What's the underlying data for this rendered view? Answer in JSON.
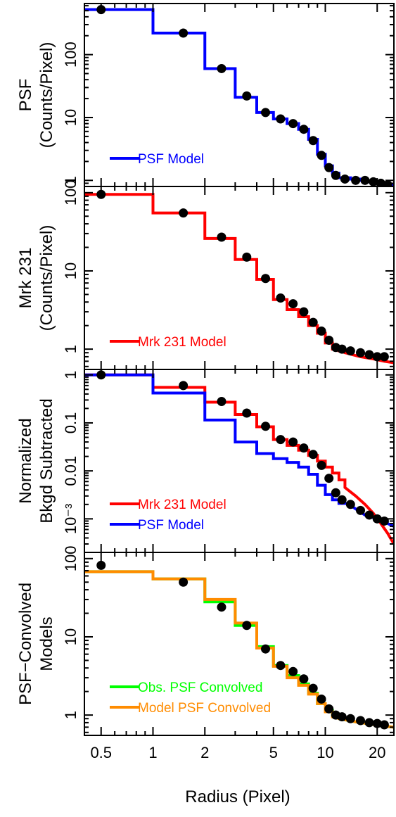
{
  "figure": {
    "xlabel": "Radius (Pixel)",
    "xscale": "log",
    "xlim": [
      0.4,
      25
    ],
    "xticks": [
      0.5,
      1,
      2,
      5,
      10,
      20
    ],
    "xtick_labels": [
      "0.5",
      "1",
      "2",
      "5",
      "10",
      "20"
    ]
  },
  "chart_data": [
    {
      "type": "line",
      "panel": "psf",
      "ylabel_lines": [
        "PSF",
        "(Counts/Pixel)"
      ],
      "yscale": "log",
      "ylim": [
        0.8,
        650
      ],
      "yticks": [
        1,
        10,
        100
      ],
      "ytick_labels": [
        "1",
        "10",
        "100"
      ],
      "legend": "bottom-left",
      "points": {
        "x": [
          0.5,
          1.5,
          2.5,
          3.5,
          4.5,
          5.5,
          6.5,
          7.5,
          8.5,
          9.5,
          10.5,
          11.5,
          13,
          15,
          17,
          19,
          21,
          23
        ],
        "y": [
          520,
          220,
          60,
          22,
          12,
          9.5,
          8,
          6.5,
          4.3,
          2.5,
          1.6,
          1.2,
          1.05,
          1.0,
          1.0,
          0.95,
          0.9,
          0.85
        ]
      },
      "series": [
        {
          "name": "PSF Model",
          "color": "#0000ff",
          "style": "step+curve",
          "steps": [
            [
              0.4,
              520
            ],
            [
              1,
              220
            ],
            [
              2,
              60
            ],
            [
              3,
              21
            ],
            [
              4,
              12
            ],
            [
              5,
              9.5
            ],
            [
              6,
              8
            ],
            [
              7,
              6.5
            ],
            [
              8,
              4.5
            ],
            [
              9,
              2.6
            ],
            [
              10,
              1.7
            ],
            [
              11,
              1.3
            ],
            [
              12,
              1.1
            ],
            [
              14,
              1.05
            ],
            [
              16,
              1.0
            ]
          ],
          "curve": {
            "x": [
              16,
              18,
              20,
              22,
              25
            ],
            "y": [
              1.0,
              0.95,
              0.92,
              0.88,
              0.85
            ]
          }
        }
      ]
    },
    {
      "type": "line",
      "panel": "mrk231",
      "ylabel_lines": [
        "Mrk 231",
        "(Counts/Pixel)"
      ],
      "yscale": "log",
      "ylim": [
        0.55,
        120
      ],
      "yticks": [
        1,
        10,
        100
      ],
      "ytick_labels": [
        "1",
        "10",
        "100"
      ],
      "legend": "bottom-left",
      "points": {
        "x": [
          0.5,
          1.5,
          2.5,
          3.5,
          4.5,
          5.5,
          6.5,
          7.5,
          8.5,
          9.5,
          10.5,
          11.5,
          12.5,
          14,
          16,
          18,
          20,
          22
        ],
        "y": [
          95,
          55,
          27,
          15,
          8,
          4.5,
          3.8,
          3.0,
          2.2,
          1.7,
          1.3,
          1.05,
          1.0,
          0.95,
          0.9,
          0.85,
          0.8,
          0.8
        ]
      },
      "series": [
        {
          "name": "Mrk 231 Model",
          "color": "#ff0000",
          "style": "step+curve",
          "steps": [
            [
              0.4,
              95
            ],
            [
              1,
              55
            ],
            [
              2,
              26
            ],
            [
              3,
              14
            ],
            [
              4,
              7.8
            ],
            [
              5,
              4.3
            ],
            [
              6,
              3.2
            ],
            [
              7,
              2.6
            ],
            [
              8,
              2.0
            ],
            [
              9,
              1.6
            ],
            [
              10,
              1.2
            ],
            [
              11,
              1.0
            ],
            [
              12,
              0.95
            ],
            [
              13,
              0.9
            ]
          ],
          "curve": {
            "x": [
              13,
              16,
              19,
              22,
              25
            ],
            "y": [
              0.9,
              0.8,
              0.75,
              0.7,
              0.67
            ]
          }
        }
      ]
    },
    {
      "type": "line",
      "panel": "normalized",
      "ylabel_lines": [
        "Normalized",
        "Bkgd Subtracted"
      ],
      "yscale": "log",
      "ylim": [
        0.0002,
        1.3
      ],
      "yticks": [
        0.001,
        0.01,
        0.1,
        1
      ],
      "ytick_labels": [
        "10⁻³",
        "0.01",
        "0.1",
        "1"
      ],
      "legend": "bottom-left",
      "points": {
        "x": [
          0.5,
          1.5,
          2.5,
          3.5,
          4.5,
          5.5,
          6.5,
          7.5,
          8.5,
          9.5,
          10.5,
          11.5,
          12.5,
          14,
          16,
          18,
          20,
          22
        ],
        "y": [
          1.0,
          0.6,
          0.28,
          0.16,
          0.085,
          0.045,
          0.04,
          0.03,
          0.022,
          0.013,
          0.007,
          0.0035,
          0.0025,
          0.002,
          0.0015,
          0.0012,
          0.001,
          0.0009
        ]
      },
      "series": [
        {
          "name": "Mrk 231 Model",
          "color": "#ff0000",
          "style": "step+curve",
          "steps": [
            [
              0.4,
              1.0
            ],
            [
              1,
              0.55
            ],
            [
              2,
              0.27
            ],
            [
              3,
              0.15
            ],
            [
              4,
              0.083
            ],
            [
              5,
              0.045
            ],
            [
              6,
              0.034
            ],
            [
              7,
              0.027
            ],
            [
              8,
              0.021
            ],
            [
              9,
              0.016
            ],
            [
              10,
              0.012
            ],
            [
              11,
              0.009
            ],
            [
              12,
              0.0065
            ],
            [
              13,
              0.0045
            ]
          ],
          "curve": {
            "x": [
              13,
              15,
              17,
              19,
              21,
              23,
              25
            ],
            "y": [
              0.0045,
              0.003,
              0.002,
              0.0013,
              0.0008,
              0.0005,
              0.0003
            ]
          }
        },
        {
          "name": "PSF Model",
          "color": "#0000ff",
          "style": "step+curve",
          "steps": [
            [
              0.4,
              1.0
            ],
            [
              1,
              0.42
            ],
            [
              2,
              0.115
            ],
            [
              3,
              0.04
            ],
            [
              4,
              0.023
            ],
            [
              5,
              0.018
            ],
            [
              6,
              0.015
            ],
            [
              7,
              0.012
            ],
            [
              8,
              0.0085
            ],
            [
              9,
              0.005
            ],
            [
              10,
              0.0032
            ],
            [
              11,
              0.0025
            ],
            [
              12,
              0.0021
            ],
            [
              14,
              0.0019
            ]
          ],
          "curve": {
            "x": [
              14,
              17,
              20,
              25
            ],
            "y": [
              0.0019,
              0.0012,
              0.001,
              0.0007
            ]
          }
        }
      ]
    },
    {
      "type": "line",
      "panel": "convolved",
      "ylabel_lines": [
        "PSF−Convolved",
        "Models"
      ],
      "yscale": "log",
      "ylim": [
        0.55,
        120
      ],
      "yticks": [
        1,
        10,
        100
      ],
      "ytick_labels": [
        "1",
        "10",
        "100"
      ],
      "legend": "bottom-left",
      "points": {
        "x": [
          0.5,
          1.5,
          2.5,
          3.5,
          4.5,
          5.5,
          6.5,
          7.5,
          8.5,
          9.5,
          10.5,
          11.5,
          12.5,
          14,
          16,
          18,
          20,
          22
        ],
        "y": [
          82,
          50,
          24,
          14,
          7,
          4.3,
          3.6,
          2.9,
          2.2,
          1.6,
          1.2,
          1.0,
          0.95,
          0.9,
          0.85,
          0.8,
          0.78,
          0.75
        ]
      },
      "series": [
        {
          "name": "Obs. PSF Convolved",
          "color": "#00ff00",
          "style": "step+curve",
          "steps": [
            [
              0.4,
              68
            ],
            [
              1,
              55
            ],
            [
              2,
              28
            ],
            [
              3,
              14
            ],
            [
              4,
              7.5
            ],
            [
              5,
              4.3
            ],
            [
              6,
              3.2
            ],
            [
              7,
              2.5
            ],
            [
              8,
              1.9
            ],
            [
              9,
              1.4
            ],
            [
              10,
              1.15
            ],
            [
              11,
              1.0
            ],
            [
              12,
              0.9
            ]
          ],
          "curve": {
            "x": [
              12,
              15,
              18,
              21,
              25
            ],
            "y": [
              0.9,
              0.82,
              0.77,
              0.73,
              0.7
            ]
          }
        },
        {
          "name": "Model PSF Convolved",
          "color": "#ff8c00",
          "style": "step+curve",
          "steps": [
            [
              0.4,
              68
            ],
            [
              1,
              55
            ],
            [
              2,
              30
            ],
            [
              3,
              15
            ],
            [
              4,
              7.2
            ],
            [
              5,
              4.2
            ],
            [
              6,
              3.0
            ],
            [
              7,
              2.4
            ],
            [
              8,
              1.85
            ],
            [
              9,
              1.4
            ],
            [
              10,
              1.1
            ],
            [
              11,
              0.95
            ],
            [
              12,
              0.9
            ]
          ],
          "curve": {
            "x": [
              12,
              15,
              18,
              21,
              25
            ],
            "y": [
              0.9,
              0.82,
              0.77,
              0.73,
              0.7
            ]
          }
        }
      ]
    }
  ]
}
